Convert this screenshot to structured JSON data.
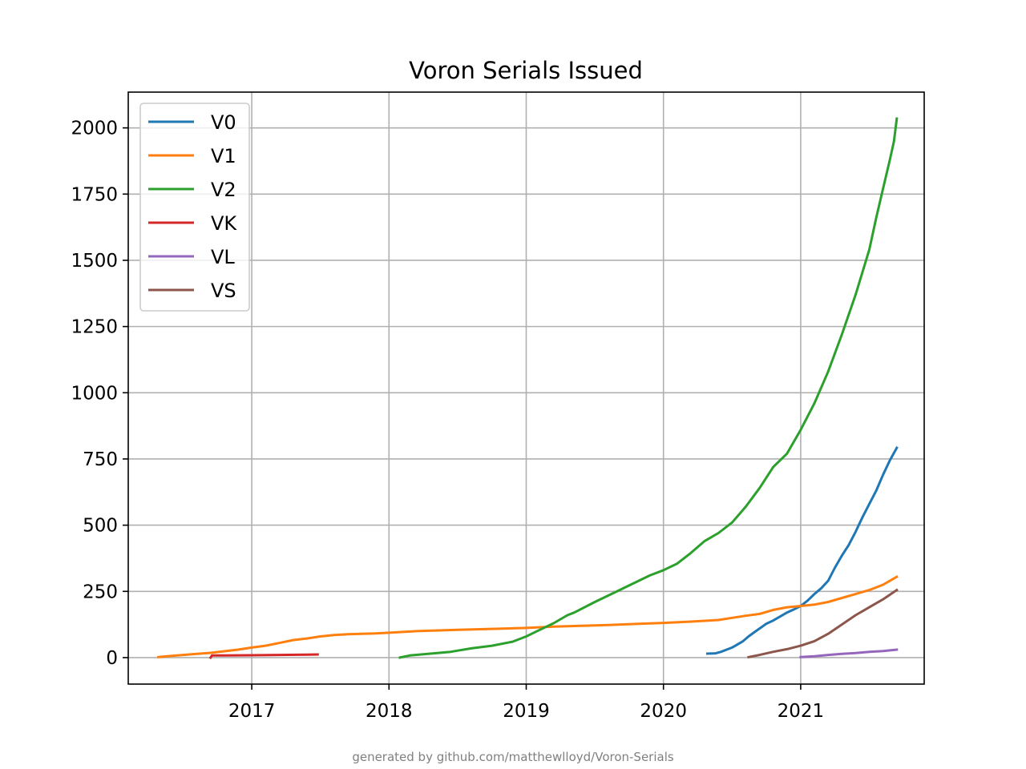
{
  "footer": "generated by github.com/matthewlloyd/Voron-Serials",
  "chart_data": {
    "type": "line",
    "title": "Voron Serials Issued",
    "xlabel": "",
    "ylabel": "",
    "xlim": [
      2016.1,
      2021.9
    ],
    "ylim": [
      -100,
      2135
    ],
    "x_ticks": [
      2017,
      2018,
      2019,
      2020,
      2021
    ],
    "y_ticks": [
      0,
      250,
      500,
      750,
      1000,
      1250,
      1500,
      1750,
      2000
    ],
    "grid": true,
    "legend_position": "upper left",
    "series": [
      {
        "name": "V0",
        "color": "#1f77b4",
        "points": [
          [
            2020.32,
            15
          ],
          [
            2020.38,
            16
          ],
          [
            2020.42,
            22
          ],
          [
            2020.46,
            30
          ],
          [
            2020.5,
            38
          ],
          [
            2020.54,
            50
          ],
          [
            2020.58,
            62
          ],
          [
            2020.62,
            80
          ],
          [
            2020.66,
            95
          ],
          [
            2020.7,
            110
          ],
          [
            2020.75,
            128
          ],
          [
            2020.8,
            140
          ],
          [
            2020.85,
            155
          ],
          [
            2020.9,
            170
          ],
          [
            2020.95,
            182
          ],
          [
            2021.0,
            195
          ],
          [
            2021.05,
            215
          ],
          [
            2021.1,
            240
          ],
          [
            2021.15,
            262
          ],
          [
            2021.2,
            290
          ],
          [
            2021.25,
            340
          ],
          [
            2021.3,
            385
          ],
          [
            2021.35,
            425
          ],
          [
            2021.4,
            475
          ],
          [
            2021.45,
            530
          ],
          [
            2021.5,
            580
          ],
          [
            2021.55,
            630
          ],
          [
            2021.6,
            690
          ],
          [
            2021.65,
            745
          ],
          [
            2021.7,
            792
          ]
        ]
      },
      {
        "name": "V1",
        "color": "#ff7f0e",
        "points": [
          [
            2016.32,
            2
          ],
          [
            2016.4,
            6
          ],
          [
            2016.5,
            10
          ],
          [
            2016.6,
            14
          ],
          [
            2016.7,
            18
          ],
          [
            2016.8,
            24
          ],
          [
            2016.9,
            30
          ],
          [
            2017.0,
            38
          ],
          [
            2017.1,
            45
          ],
          [
            2017.2,
            55
          ],
          [
            2017.3,
            66
          ],
          [
            2017.4,
            72
          ],
          [
            2017.5,
            80
          ],
          [
            2017.6,
            85
          ],
          [
            2017.7,
            88
          ],
          [
            2017.8,
            90
          ],
          [
            2017.9,
            91
          ],
          [
            2018.0,
            94
          ],
          [
            2018.1,
            97
          ],
          [
            2018.2,
            100
          ],
          [
            2018.5,
            105
          ],
          [
            2018.8,
            109
          ],
          [
            2019.0,
            112
          ],
          [
            2019.2,
            117
          ],
          [
            2019.4,
            120
          ],
          [
            2019.6,
            123
          ],
          [
            2019.8,
            127
          ],
          [
            2020.0,
            131
          ],
          [
            2020.2,
            136
          ],
          [
            2020.4,
            142
          ],
          [
            2020.5,
            150
          ],
          [
            2020.6,
            158
          ],
          [
            2020.7,
            165
          ],
          [
            2020.8,
            180
          ],
          [
            2020.9,
            190
          ],
          [
            2021.0,
            195
          ],
          [
            2021.1,
            200
          ],
          [
            2021.2,
            210
          ],
          [
            2021.3,
            225
          ],
          [
            2021.4,
            240
          ],
          [
            2021.5,
            255
          ],
          [
            2021.6,
            275
          ],
          [
            2021.7,
            305
          ]
        ]
      },
      {
        "name": "V2",
        "color": "#2ca02c",
        "points": [
          [
            2018.08,
            0
          ],
          [
            2018.15,
            8
          ],
          [
            2018.3,
            15
          ],
          [
            2018.45,
            22
          ],
          [
            2018.6,
            35
          ],
          [
            2018.75,
            45
          ],
          [
            2018.9,
            60
          ],
          [
            2019.0,
            80
          ],
          [
            2019.1,
            105
          ],
          [
            2019.2,
            130
          ],
          [
            2019.3,
            160
          ],
          [
            2019.35,
            170
          ],
          [
            2019.5,
            210
          ],
          [
            2019.7,
            260
          ],
          [
            2019.9,
            310
          ],
          [
            2020.0,
            330
          ],
          [
            2020.1,
            355
          ],
          [
            2020.2,
            395
          ],
          [
            2020.3,
            440
          ],
          [
            2020.4,
            470
          ],
          [
            2020.5,
            510
          ],
          [
            2020.6,
            570
          ],
          [
            2020.7,
            640
          ],
          [
            2020.8,
            720
          ],
          [
            2020.9,
            770
          ],
          [
            2021.0,
            860
          ],
          [
            2021.1,
            960
          ],
          [
            2021.2,
            1080
          ],
          [
            2021.3,
            1220
          ],
          [
            2021.4,
            1370
          ],
          [
            2021.5,
            1540
          ],
          [
            2021.55,
            1660
          ],
          [
            2021.6,
            1770
          ],
          [
            2021.65,
            1880
          ],
          [
            2021.68,
            1950
          ],
          [
            2021.7,
            2035
          ]
        ]
      },
      {
        "name": "VK",
        "color": "#d62728",
        "points": [
          [
            2016.7,
            0
          ],
          [
            2016.71,
            8
          ],
          [
            2016.8,
            8
          ],
          [
            2017.0,
            9
          ],
          [
            2017.2,
            10
          ],
          [
            2017.4,
            11
          ],
          [
            2017.48,
            12
          ]
        ]
      },
      {
        "name": "VL",
        "color": "#9467bd",
        "points": [
          [
            2021.0,
            2
          ],
          [
            2021.1,
            5
          ],
          [
            2021.2,
            10
          ],
          [
            2021.3,
            14
          ],
          [
            2021.4,
            17
          ],
          [
            2021.5,
            22
          ],
          [
            2021.6,
            25
          ],
          [
            2021.7,
            30
          ]
        ]
      },
      {
        "name": "VS",
        "color": "#8c564b",
        "points": [
          [
            2020.62,
            2
          ],
          [
            2020.7,
            10
          ],
          [
            2020.8,
            22
          ],
          [
            2020.9,
            32
          ],
          [
            2021.0,
            45
          ],
          [
            2021.1,
            62
          ],
          [
            2021.2,
            90
          ],
          [
            2021.3,
            125
          ],
          [
            2021.4,
            160
          ],
          [
            2021.5,
            190
          ],
          [
            2021.6,
            220
          ],
          [
            2021.7,
            255
          ]
        ]
      }
    ]
  }
}
